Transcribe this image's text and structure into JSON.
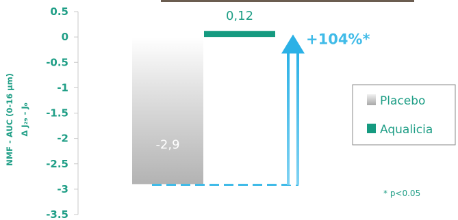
{
  "chart_data": {
    "type": "bar",
    "categories": [
      "Placebo",
      "Aqualicia"
    ],
    "series": [
      {
        "name": "Placebo",
        "value": -2.9,
        "label": "-2,9",
        "color": "#c4c4c4"
      },
      {
        "name": "Aqualicia",
        "value": 0.12,
        "label": "0,12",
        "color": "#159a80"
      }
    ],
    "ylabel_line1": "NMF - AUC (0-16 µm)",
    "ylabel_line2": "Δ J₂₉ - J₀",
    "ylim": [
      -3.5,
      0.5
    ],
    "yticks": [
      "0.5",
      "0",
      "-0.5",
      "-1",
      "-1.5",
      "-2",
      "-2.5",
      "-3",
      "-3.5"
    ],
    "ytick_values": [
      0.5,
      0,
      -0.5,
      -1,
      -1.5,
      -2,
      -2.5,
      -3,
      -3.5
    ],
    "annotation": "+104%*",
    "footnote": "* p<0.05",
    "legend_position": "right",
    "accent_color": "#40bbe8",
    "text_color": "#1f9e86",
    "grid": false
  }
}
